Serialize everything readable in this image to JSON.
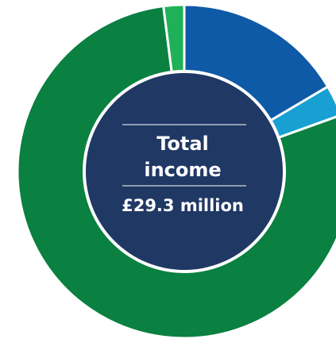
{
  "chart_data": {
    "type": "pie",
    "variant": "donut",
    "center_label": {
      "line1": "Total",
      "line2": "income",
      "value": "£29.3 million"
    },
    "slices": [
      {
        "value": 16.5,
        "color": "#0f5aa6"
      },
      {
        "value": 3.0,
        "color": "#18a0d2"
      },
      {
        "value": 78.5,
        "color": "#0a8041"
      },
      {
        "value": 2.0,
        "color": "#1fb157"
      }
    ],
    "background": "#ffffff",
    "center_fill": "#203864",
    "separator_color": "#ffffff"
  }
}
